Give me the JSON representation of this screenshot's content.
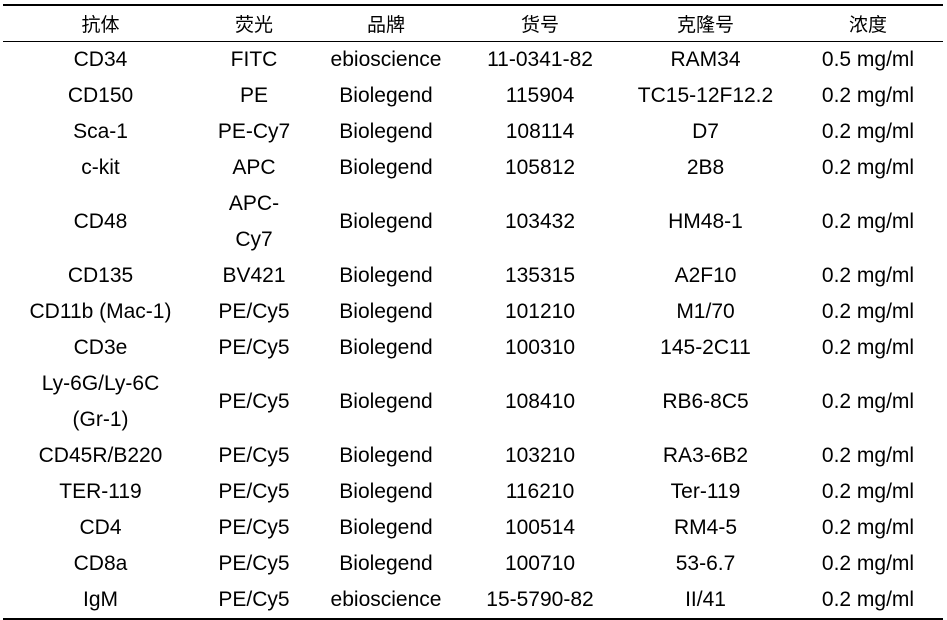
{
  "table": {
    "headers": [
      "抗体",
      "荧光",
      "品牌",
      "货号",
      "克隆号",
      "浓度"
    ],
    "rows": [
      [
        "CD34",
        "FITC",
        "ebioscience",
        "11-0341-82",
        "RAM34",
        "0.5 mg/ml"
      ],
      [
        "CD150",
        "PE",
        "Biolegend",
        "115904",
        "TC15-12F12.2",
        "0.2 mg/ml"
      ],
      [
        "Sca-1",
        "PE-Cy7",
        "Biolegend",
        "108114",
        "D7",
        "0.2 mg/ml"
      ],
      [
        "c-kit",
        "APC",
        "Biolegend",
        "105812",
        "2B8",
        "0.2 mg/ml"
      ],
      [
        "CD48",
        "APC-Cy7",
        "Biolegend",
        "103432",
        "HM48-1",
        "0.2 mg/ml"
      ],
      [
        "CD135",
        "BV421",
        "Biolegend",
        "135315",
        "A2F10",
        "0.2 mg/ml"
      ],
      [
        "CD11b (Mac-1)",
        "PE/Cy5",
        "Biolegend",
        "101210",
        "M1/70",
        "0.2 mg/ml"
      ],
      [
        "CD3e",
        "PE/Cy5",
        "Biolegend",
        "100310",
        "145-2C11",
        "0.2 mg/ml"
      ],
      [
        "Ly-6G/Ly-6C (Gr-1)",
        "PE/Cy5",
        "Biolegend",
        "108410",
        "RB6-8C5",
        "0.2 mg/ml"
      ],
      [
        "CD45R/B220",
        "PE/Cy5",
        "Biolegend",
        "103210",
        "RA3-6B2",
        "0.2 mg/ml"
      ],
      [
        "TER-119",
        "PE/Cy5",
        "Biolegend",
        "116210",
        "Ter-119",
        "0.2 mg/ml"
      ],
      [
        "CD4",
        "PE/Cy5",
        "Biolegend",
        "100514",
        "RM4-5",
        "0.2 mg/ml"
      ],
      [
        "CD8a",
        "PE/Cy5",
        "Biolegend",
        "100710",
        "53-6.7",
        "0.2 mg/ml"
      ],
      [
        "IgM",
        "PE/Cy5",
        "ebioscience",
        "15-5790-82",
        "II/41",
        "0.2 mg/ml"
      ]
    ]
  }
}
